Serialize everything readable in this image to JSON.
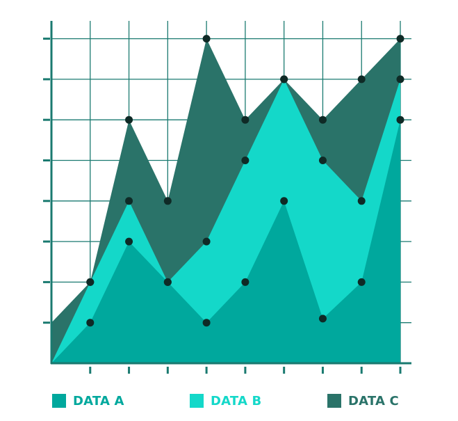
{
  "chart_data": {
    "type": "area",
    "stacked": false,
    "x": [
      0,
      1,
      2,
      3,
      4,
      5,
      6,
      7,
      8,
      9
    ],
    "xlim": [
      0,
      9
    ],
    "ylim": [
      0,
      8.5
    ],
    "grid": true,
    "axis_tick_labels": false,
    "legend_position": "bottom",
    "series": [
      {
        "name": "DATA C",
        "color": "#2a7369",
        "values": [
          1,
          2,
          6,
          4,
          8,
          6,
          7,
          6,
          7,
          8
        ]
      },
      {
        "name": "DATA B",
        "color": "#14d8c9",
        "values": [
          0,
          2,
          4,
          2,
          3,
          5,
          7,
          5,
          4,
          7
        ]
      },
      {
        "name": "DATA A",
        "color": "#00a89d",
        "values": [
          0,
          1,
          3,
          2,
          1,
          2,
          4,
          1.1,
          2,
          6
        ]
      }
    ],
    "legend": [
      {
        "label": "DATA A",
        "color": "#00a89d"
      },
      {
        "label": "DATA B",
        "color": "#14d8c9"
      },
      {
        "label": "DATA C",
        "color": "#2a7369"
      }
    ],
    "marker_color": "#0f2a26",
    "grid_color": "#1a7a70",
    "axis_color": "#1a7a70"
  }
}
